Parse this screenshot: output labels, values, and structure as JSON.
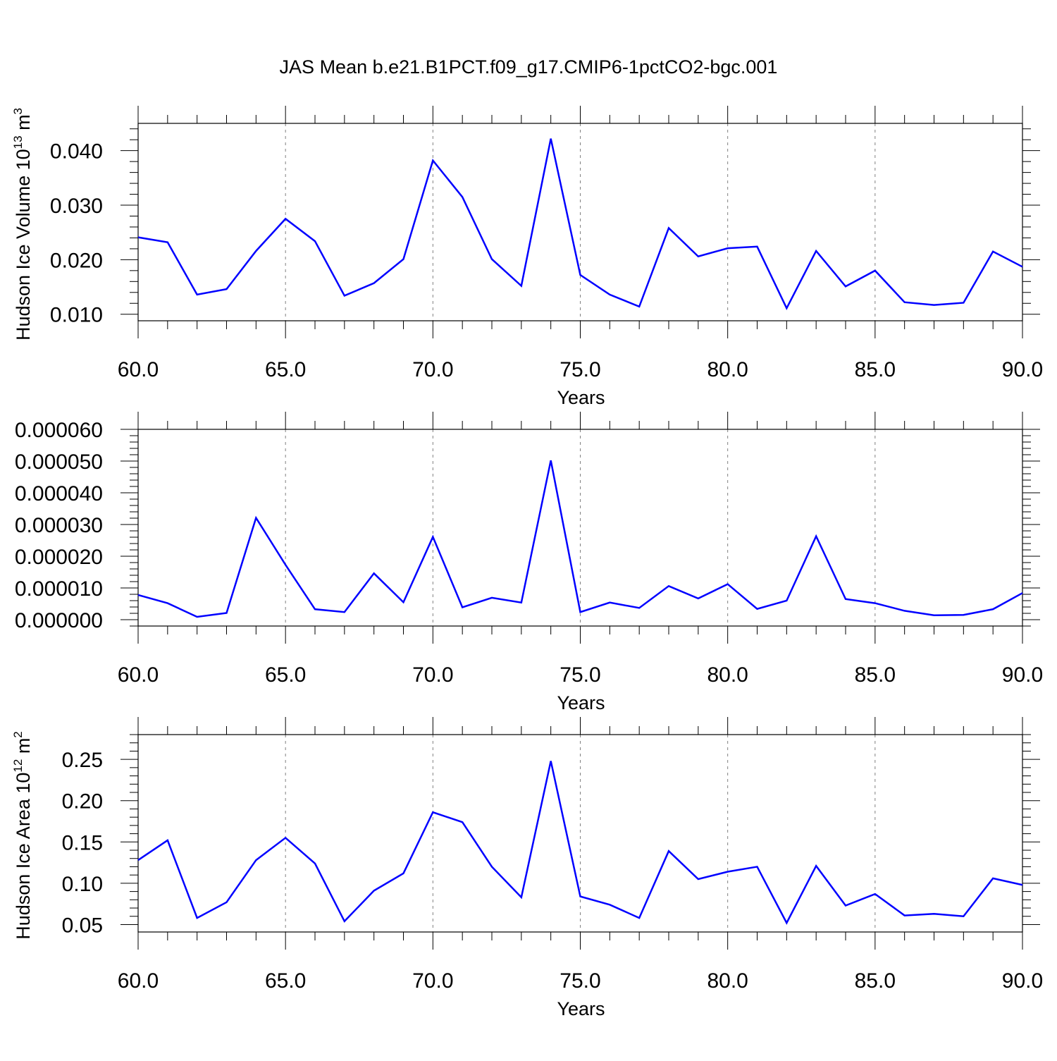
{
  "title": "JAS Mean b.e21.B1PCT.f09_g17.CMIP6-1pctCO2-bgc.001",
  "colors": {
    "line": "#0000ff",
    "axis": "#000000",
    "grid": "#808080"
  },
  "chart_data": [
    {
      "type": "line",
      "ylabel": "Hudson Ice Volume 10",
      "ylabel_sup": "13",
      "ylabel_unit": " m",
      "ylabel_unit_sup": "3",
      "xlabel": "Years",
      "xlim": [
        60,
        90
      ],
      "ylim": [
        0.0088,
        0.045
      ],
      "xticks": [
        60,
        65,
        70,
        75,
        80,
        85,
        90
      ],
      "xtick_labels": [
        "60.0",
        "65.0",
        "70.0",
        "75.0",
        "80.0",
        "85.0",
        "90.0"
      ],
      "yticks": [
        0.01,
        0.02,
        0.03,
        0.04
      ],
      "ytick_labels": [
        "0.010",
        "0.020",
        "0.030",
        "0.040"
      ],
      "grid": "vertical dashed at major x ticks",
      "x": [
        60,
        61,
        62,
        63,
        64,
        65,
        66,
        67,
        68,
        69,
        70,
        71,
        72,
        73,
        74,
        75,
        76,
        77,
        78,
        79,
        80,
        81,
        82,
        83,
        84,
        85,
        86,
        87,
        88,
        89,
        90
      ],
      "y": [
        0.0241,
        0.0232,
        0.0136,
        0.0146,
        0.0216,
        0.0275,
        0.0234,
        0.0134,
        0.0157,
        0.0201,
        0.0382,
        0.0315,
        0.0201,
        0.0152,
        0.0422,
        0.0172,
        0.0136,
        0.0114,
        0.0258,
        0.0206,
        0.0221,
        0.0224,
        0.0111,
        0.0216,
        0.0151,
        0.018,
        0.0122,
        0.0117,
        0.0121,
        0.0215,
        0.0187
      ]
    },
    {
      "type": "line",
      "ylabel": "",
      "xlabel": "Years",
      "xlim": [
        60,
        90
      ],
      "ylim": [
        -2e-06,
        6e-05
      ],
      "xticks": [
        60,
        65,
        70,
        75,
        80,
        85,
        90
      ],
      "xtick_labels": [
        "60.0",
        "65.0",
        "70.0",
        "75.0",
        "80.0",
        "85.0",
        "90.0"
      ],
      "yticks": [
        0,
        1e-05,
        2e-05,
        3e-05,
        4e-05,
        5e-05,
        6e-05
      ],
      "ytick_labels": [
        "0.000000",
        "0.000010",
        "0.000020",
        "0.000030",
        "0.000040",
        "0.000050",
        "0.000060"
      ],
      "grid": "vertical dashed at major x ticks",
      "x": [
        60,
        61,
        62,
        63,
        64,
        65,
        66,
        67,
        68,
        69,
        70,
        71,
        72,
        73,
        74,
        75,
        76,
        77,
        78,
        79,
        80,
        81,
        82,
        83,
        84,
        85,
        86,
        87,
        88,
        89,
        90
      ],
      "y": [
        7.8e-06,
        5.2e-06,
        9e-07,
        2.1e-06,
        3.21e-05,
        1.73e-05,
        3.3e-06,
        2.4e-06,
        1.46e-05,
        5.5e-06,
        2.61e-05,
        3.9e-06,
        6.9e-06,
        5.4e-06,
        5.02e-05,
        2.4e-06,
        5.4e-06,
        3.7e-06,
        1.06e-05,
        6.7e-06,
        1.12e-05,
        3.4e-06,
        6e-06,
        2.63e-05,
        6.5e-06,
        5.2e-06,
        2.8e-06,
        1.4e-06,
        1.5e-06,
        3.3e-06,
        8.4e-06
      ]
    },
    {
      "type": "line",
      "ylabel": "Hudson Ice Area 10",
      "ylabel_sup": "12",
      "ylabel_unit": " m",
      "ylabel_unit_sup": "2",
      "xlabel": "Years",
      "xlim": [
        60,
        90
      ],
      "ylim": [
        0.041,
        0.28
      ],
      "xticks": [
        60,
        65,
        70,
        75,
        80,
        85,
        90
      ],
      "xtick_labels": [
        "60.0",
        "65.0",
        "70.0",
        "75.0",
        "80.0",
        "85.0",
        "90.0"
      ],
      "yticks": [
        0.05,
        0.1,
        0.15,
        0.2,
        0.25
      ],
      "ytick_labels": [
        "0.05",
        "0.10",
        "0.15",
        "0.20",
        "0.25"
      ],
      "grid": "vertical dashed at major x ticks",
      "x": [
        60,
        61,
        62,
        63,
        64,
        65,
        66,
        67,
        68,
        69,
        70,
        71,
        72,
        73,
        74,
        75,
        76,
        77,
        78,
        79,
        80,
        81,
        82,
        83,
        84,
        85,
        86,
        87,
        88,
        89,
        90
      ],
      "y": [
        0.128,
        0.152,
        0.058,
        0.077,
        0.128,
        0.155,
        0.124,
        0.054,
        0.091,
        0.112,
        0.186,
        0.174,
        0.12,
        0.083,
        0.248,
        0.084,
        0.074,
        0.058,
        0.139,
        0.105,
        0.114,
        0.12,
        0.052,
        0.121,
        0.073,
        0.087,
        0.061,
        0.063,
        0.06,
        0.106,
        0.098
      ]
    }
  ]
}
